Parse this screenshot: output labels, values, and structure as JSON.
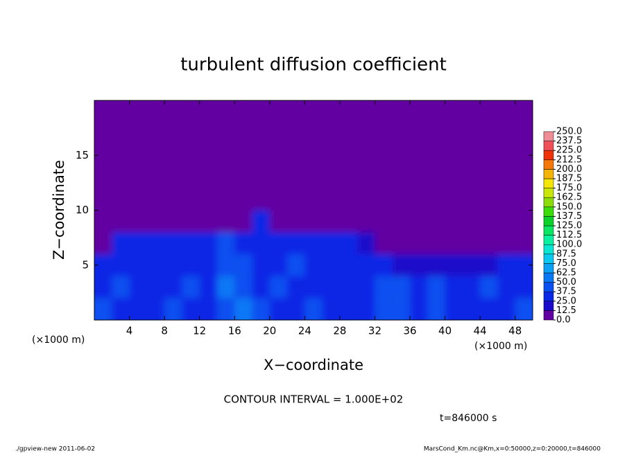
{
  "chart_data": {
    "type": "heatmap",
    "title": "turbulent diffusion coefficient",
    "xlabel": "X−coordinate",
    "ylabel": "Z−coordinate",
    "x_unit": "(×1000 m)",
    "y_unit": "(×1000 m)",
    "xlim": [
      0,
      50
    ],
    "ylim": [
      0,
      20
    ],
    "xticks": [
      4,
      8,
      12,
      16,
      20,
      24,
      28,
      32,
      36,
      40,
      44,
      48
    ],
    "yticks": [
      5,
      10,
      15
    ],
    "x": [
      1,
      3,
      5,
      7,
      9,
      11,
      13,
      15,
      17,
      19,
      21,
      23,
      25,
      27,
      29,
      31,
      33,
      35,
      37,
      39,
      41,
      43,
      45,
      47,
      49
    ],
    "y": [
      1,
      3,
      5,
      7,
      9,
      11,
      13,
      15,
      17,
      19
    ],
    "z": [
      [
        40,
        35,
        30,
        35,
        38,
        30,
        25,
        45,
        50,
        40,
        30,
        35,
        40,
        30,
        35,
        30,
        38,
        45,
        30,
        40,
        35,
        30,
        35,
        30,
        40
      ],
      [
        37,
        40,
        32,
        30,
        35,
        40,
        30,
        50,
        45,
        35,
        40,
        30,
        35,
        30,
        32,
        35,
        40,
        38,
        35,
        40,
        30,
        35,
        40,
        30,
        35
      ],
      [
        30,
        32,
        35,
        30,
        32,
        35,
        30,
        45,
        40,
        30,
        35,
        40,
        30,
        28,
        30,
        32,
        25,
        20,
        20,
        20,
        18,
        20,
        15,
        25,
        30
      ],
      [
        10,
        25,
        30,
        28,
        30,
        32,
        28,
        40,
        35,
        28,
        30,
        35,
        28,
        25,
        25,
        22,
        10,
        2,
        2,
        2,
        2,
        2,
        2,
        2,
        2
      ],
      [
        2,
        2,
        2,
        2,
        2,
        2,
        2,
        2,
        2,
        30,
        2,
        2,
        2,
        2,
        2,
        2,
        2,
        2,
        2,
        2,
        2,
        2,
        2,
        2,
        2
      ],
      [
        2,
        2,
        2,
        2,
        2,
        2,
        2,
        2,
        2,
        10,
        2,
        2,
        2,
        2,
        2,
        2,
        2,
        2,
        2,
        2,
        2,
        2,
        2,
        2,
        2
      ],
      [
        2,
        2,
        2,
        2,
        2,
        2,
        2,
        2,
        2,
        2,
        2,
        2,
        2,
        2,
        2,
        2,
        2,
        2,
        2,
        2,
        2,
        2,
        2,
        2,
        2
      ],
      [
        2,
        2,
        2,
        2,
        2,
        2,
        2,
        2,
        2,
        2,
        2,
        2,
        2,
        2,
        2,
        2,
        2,
        2,
        2,
        2,
        2,
        2,
        2,
        2,
        2
      ],
      [
        2,
        2,
        2,
        2,
        2,
        2,
        2,
        2,
        2,
        2,
        2,
        2,
        2,
        2,
        2,
        2,
        2,
        2,
        2,
        2,
        2,
        2,
        2,
        2,
        2
      ],
      [
        2,
        2,
        2,
        2,
        2,
        2,
        2,
        2,
        2,
        2,
        2,
        2,
        2,
        2,
        2,
        2,
        2,
        2,
        2,
        2,
        2,
        2,
        2,
        2,
        2
      ]
    ],
    "colorbar": {
      "ticks": [
        {
          "value": 0,
          "label": "0.0"
        },
        {
          "value": 12.5,
          "label": "12.5"
        },
        {
          "value": 25,
          "label": "25.0"
        },
        {
          "value": 37.5,
          "label": "37.5"
        },
        {
          "value": 50,
          "label": "50.0"
        },
        {
          "value": 62.5,
          "label": "62.5"
        },
        {
          "value": 75,
          "label": "75.0"
        },
        {
          "value": 87.5,
          "label": "87.5"
        },
        {
          "value": 100,
          "label": "100.0"
        },
        {
          "value": 112.5,
          "label": "112.5"
        },
        {
          "value": 125,
          "label": "125.0"
        },
        {
          "value": 137.5,
          "label": "137.5"
        },
        {
          "value": 150,
          "label": "150.0"
        },
        {
          "value": 162.5,
          "label": "162.5"
        },
        {
          "value": 175,
          "label": "175.0"
        },
        {
          "value": 187.5,
          "label": "187.5"
        },
        {
          "value": 200,
          "label": "200.0"
        },
        {
          "value": 212.5,
          "label": "212.5"
        },
        {
          "value": 225,
          "label": "225.0"
        },
        {
          "value": 237.5,
          "label": "237.5"
        },
        {
          "value": 250,
          "label": "250.0"
        }
      ],
      "colors": [
        "#6200a2",
        "#1c0acb",
        "#0a28e6",
        "#0a50f0",
        "#0a78f5",
        "#0aa0f5",
        "#0ac8f0",
        "#0ae6d2",
        "#0af0a0",
        "#0ae664",
        "#0ad228",
        "#3cdc0a",
        "#8cdc0a",
        "#c8e60a",
        "#f5e60a",
        "#f5b40a",
        "#f5780a",
        "#f0320a",
        "#f0505a",
        "#f08c96"
      ]
    },
    "contour_interval": "CONTOUR INTERVAL = 1.000E+02",
    "time": "t=846000 s",
    "footer_left": "./gpview-new  2011-06-02",
    "footer_right": "MarsCond_Km.nc@Km,x=0:50000,z=0:20000,t=846000"
  }
}
